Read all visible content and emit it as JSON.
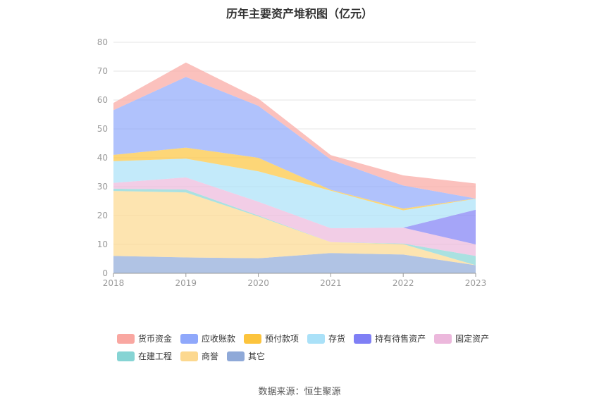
{
  "chart_data": {
    "type": "area",
    "stacked": true,
    "title": "历年主要资产堆积图（亿元）",
    "categories": [
      "2018",
      "2019",
      "2020",
      "2021",
      "2022",
      "2023"
    ],
    "ylim": [
      0,
      80
    ],
    "yticks": [
      "0",
      "10",
      "20",
      "30",
      "40",
      "50",
      "60",
      "70",
      "80"
    ],
    "grid": true,
    "legend_position": "bottom",
    "series": [
      {
        "name": "其它",
        "color": "#8fa9d8",
        "values": [
          6.0,
          5.5,
          5.2,
          7.0,
          6.5,
          2.8
        ]
      },
      {
        "name": "商誉",
        "color": "#fcd88f",
        "values": [
          22.5,
          22.5,
          14.5,
          3.8,
          3.6,
          0.0
        ]
      },
      {
        "name": "在建工程",
        "color": "#86d4d4",
        "values": [
          0.8,
          1.0,
          0.3,
          0.0,
          0.2,
          3.2
        ]
      },
      {
        "name": "固定资产",
        "color": "#ecb8dc",
        "values": [
          2.0,
          4.2,
          4.8,
          4.8,
          5.5,
          4.0
        ]
      },
      {
        "name": "持有待售资产",
        "color": "#7f7ff5",
        "values": [
          0.0,
          0.0,
          0.0,
          0.0,
          0.0,
          12.0
        ]
      },
      {
        "name": "存货",
        "color": "#aae1f8",
        "values": [
          7.5,
          6.5,
          10.5,
          13.0,
          6.0,
          3.8
        ]
      },
      {
        "name": "预付款项",
        "color": "#fcc43d",
        "values": [
          2.2,
          3.8,
          4.7,
          0.3,
          0.6,
          0.1
        ]
      },
      {
        "name": "应收账款",
        "color": "#8fa8fb",
        "values": [
          15.5,
          24.5,
          18.0,
          10.5,
          8.0,
          0.0
        ]
      },
      {
        "name": "货币资金",
        "color": "#f9a7a1",
        "values": [
          2.5,
          5.0,
          2.5,
          1.5,
          3.5,
          5.2
        ]
      }
    ]
  },
  "legend": {
    "row1": [
      {
        "label": "货币资金",
        "color": "#f9a7a1"
      },
      {
        "label": "应收账款",
        "color": "#8fa8fb"
      },
      {
        "label": "预付款项",
        "color": "#fcc43d"
      },
      {
        "label": "存货",
        "color": "#aae1f8"
      },
      {
        "label": "持有待售资产",
        "color": "#7f7ff5"
      },
      {
        "label": "固定资产",
        "color": "#ecb8dc"
      }
    ],
    "row2": [
      {
        "label": "在建工程",
        "color": "#86d4d4"
      },
      {
        "label": "商誉",
        "color": "#fcd88f"
      },
      {
        "label": "其它",
        "color": "#8fa9d8"
      }
    ]
  },
  "source": "数据来源：恒生聚源"
}
